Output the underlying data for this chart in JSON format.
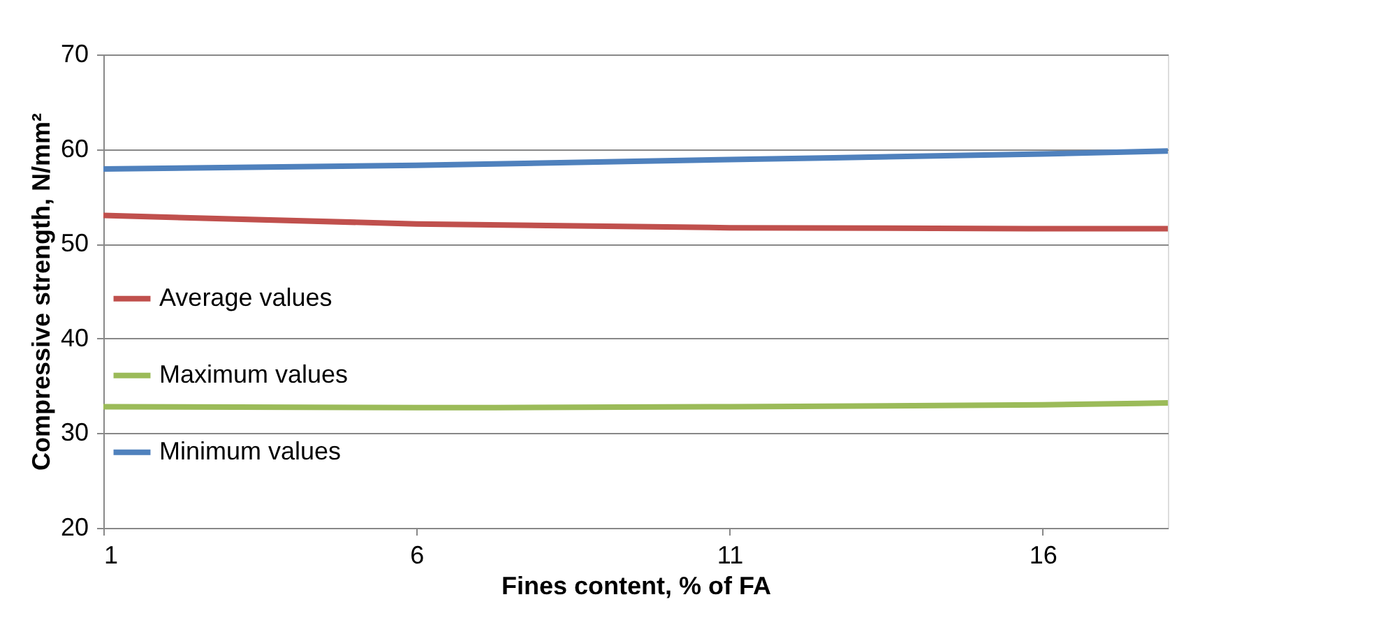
{
  "chart_data": {
    "type": "line",
    "xlabel": "Fines content, % of FA",
    "ylabel": "Compressive strength, N/mm²",
    "x": [
      1,
      6,
      11,
      16,
      18
    ],
    "series": [
      {
        "name": "Average values",
        "color": "#c0504d",
        "values": [
          53.0,
          52.1,
          51.7,
          51.6,
          51.6
        ]
      },
      {
        "name": "Maximum values",
        "color": "#9bbb59",
        "values": [
          32.8,
          32.7,
          32.8,
          33.0,
          33.2
        ]
      },
      {
        "name": "Minimum values",
        "color": "#4f81bd",
        "values": [
          57.9,
          58.3,
          58.9,
          59.5,
          59.8
        ]
      }
    ],
    "xlim": [
      1,
      18
    ],
    "xticks": [
      1,
      6,
      11,
      16
    ],
    "ylim": [
      20,
      70
    ],
    "yticks": [
      20,
      30,
      40,
      50,
      60,
      70
    ],
    "grid": "y",
    "legend": "left",
    "marker": "none",
    "line_style": "solid"
  }
}
